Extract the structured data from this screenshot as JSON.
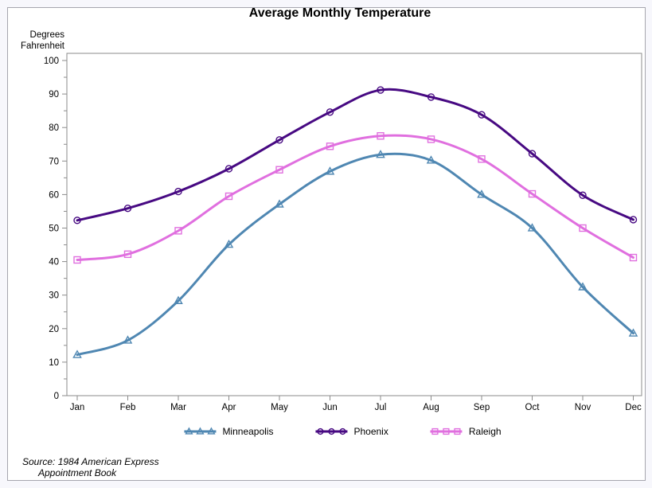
{
  "header": {
    "title": "Average Monthly Temperature"
  },
  "y_axis": {
    "label_line1": "Degrees",
    "label_line2": "Fahrenheit"
  },
  "footnote": {
    "line1": "Source: 1984 American Express",
    "line2": "Appointment Book"
  },
  "chart_data": {
    "type": "line",
    "title": "Average Monthly Temperature",
    "xlabel": "",
    "ylabel": "Degrees Fahrenheit",
    "categories": [
      "Jan",
      "Feb",
      "Mar",
      "Apr",
      "May",
      "Jun",
      "Jul",
      "Aug",
      "Sep",
      "Oct",
      "Nov",
      "Dec"
    ],
    "ylim": [
      0,
      100
    ],
    "y_ticks": [
      0,
      10,
      20,
      30,
      40,
      50,
      60,
      70,
      80,
      90,
      100
    ],
    "y_minor_tick_step": 5,
    "grid": false,
    "line_style": "smooth-spline",
    "legend_position": "bottom",
    "frame": true,
    "axis_color": "#8b8b8b",
    "series": [
      {
        "name": "Minneapolis",
        "color": "#4f87b2",
        "marker": "triangle",
        "values": [
          12.2,
          16.5,
          28.3,
          45.1,
          57.1,
          66.9,
          71.9,
          70.2,
          60.0,
          50.0,
          32.4,
          18.6
        ]
      },
      {
        "name": "Phoenix",
        "color": "#470982",
        "marker": "circle",
        "values": [
          52.3,
          55.9,
          60.9,
          67.7,
          76.3,
          84.6,
          91.2,
          89.1,
          83.8,
          72.2,
          59.8,
          52.5
        ]
      },
      {
        "name": "Raleigh",
        "color": "#e06fdf",
        "marker": "square",
        "values": [
          40.5,
          42.2,
          49.2,
          59.5,
          67.4,
          74.4,
          77.5,
          76.5,
          70.6,
          60.2,
          50.0,
          41.2
        ]
      }
    ],
    "source_note": "Source: 1984 American Express Appointment Book"
  }
}
